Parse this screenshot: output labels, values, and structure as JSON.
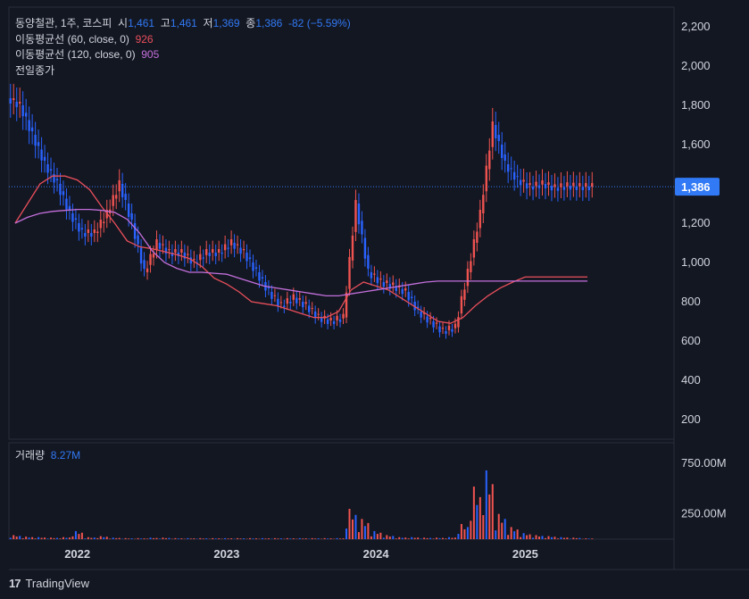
{
  "legend": {
    "symbol": "동양철관, 1주, 코스피",
    "o_label": "시",
    "o": "1,461",
    "h_label": "고",
    "h": "1,461",
    "l_label": "저",
    "l": "1,369",
    "c_label": "종",
    "c": "1,386",
    "chg": "-82 (−5.59%)",
    "ma60_label": "이동평균선 (60, close, 0)",
    "ma60_value": "926",
    "ma120_label": "이동평균선 (120, close, 0)",
    "ma120_value": "905",
    "prev_close_label": "전일종가",
    "volume_label": "거래량",
    "volume_value": "8.27M"
  },
  "price_axis": {
    "ticks": [
      "2,200",
      "2,000",
      "1,800",
      "1,600",
      "1,400",
      "1,200",
      "1,000",
      "800",
      "600",
      "400",
      "200"
    ],
    "last_label": "1,386"
  },
  "volume_axis": {
    "ticks": [
      "750.00M",
      "250.00M"
    ]
  },
  "time_axis": {
    "ticks": [
      "2022",
      "2023",
      "2024",
      "2025"
    ]
  },
  "brand": "TradingView",
  "colors": {
    "up": "#ef5350",
    "down": "#2962ff",
    "ma60": "#e84f5b",
    "ma120": "#c36fdb",
    "prev_close": "#3179f5",
    "bg": "#131722"
  },
  "chart_data": {
    "type": "candlestick",
    "title": "동양철관, 1주, 코스피",
    "ylim": [
      100,
      2300
    ],
    "volume_ylim": [
      0,
      900
    ],
    "x": [
      "2021-08",
      "2021-09",
      "2021-10",
      "2021-11",
      "2021-12",
      "2022-01",
      "2022-02",
      "2022-03",
      "2022-04",
      "2022-05",
      "2022-06",
      "2022-07",
      "2022-08",
      "2022-09",
      "2022-10",
      "2022-11",
      "2022-12",
      "2023-01",
      "2023-02",
      "2023-03",
      "2023-04",
      "2023-05",
      "2023-06",
      "2023-07",
      "2023-08",
      "2023-09",
      "2023-10",
      "2023-11",
      "2023-12",
      "2024-01",
      "2024-02",
      "2024-03",
      "2024-04",
      "2024-05",
      "2024-06",
      "2024-07",
      "2024-08",
      "2024-09",
      "2024-10",
      "2024-11",
      "2024-12",
      "2025-01",
      "2025-02",
      "2025-03",
      "2025-04",
      "2025-05",
      "2025-06"
    ],
    "close": [
      1800,
      1650,
      1500,
      1400,
      1250,
      1150,
      1150,
      1250,
      1400,
      1200,
      950,
      1100,
      1050,
      1050,
      1000,
      1050,
      1050,
      1100,
      1050,
      950,
      850,
      780,
      820,
      780,
      720,
      700,
      720,
      1300,
      950,
      900,
      880,
      850,
      750,
      700,
      650,
      670,
      950,
      1250,
      1700,
      1500,
      1420,
      1386,
      1400,
      1380,
      1390,
      1386,
      1386
    ],
    "series": [
      {
        "name": "이동평균선 (60, close, 0)",
        "values": [
          1200,
          1300,
          1400,
          1440,
          1440,
          1420,
          1370,
          1280,
          1200,
          1110,
          1080,
          1070,
          1055,
          1040,
          1020,
          980,
          920,
          890,
          850,
          800,
          790,
          780,
          760,
          740,
          720,
          720,
          750,
          860,
          900,
          880,
          860,
          820,
          780,
          740,
          700,
          690,
          720,
          780,
          830,
          870,
          900,
          926,
          926,
          926,
          926,
          926,
          926
        ]
      },
      {
        "name": "이동평均선 (120, close, 0)",
        "values": [
          1200,
          1230,
          1250,
          1260,
          1265,
          1270,
          1270,
          1265,
          1255,
          1220,
          1150,
          1060,
          1000,
          970,
          950,
          950,
          945,
          940,
          920,
          900,
          880,
          870,
          860,
          850,
          840,
          830,
          830,
          840,
          850,
          860,
          870,
          880,
          890,
          900,
          905,
          905,
          905,
          905,
          905,
          905,
          905,
          905,
          905,
          905,
          905,
          905,
          905
        ]
      }
    ],
    "volume_peaks_M": [
      40,
      25,
      20,
      15,
      20,
      80,
      20,
      30,
      15,
      10,
      10,
      15,
      15,
      10,
      10,
      10,
      10,
      10,
      10,
      10,
      10,
      10,
      10,
      10,
      10,
      10,
      10,
      300,
      200,
      80,
      40,
      20,
      20,
      15,
      15,
      20,
      150,
      520,
      680,
      250,
      120,
      60,
      40,
      30,
      20,
      15,
      8
    ]
  }
}
